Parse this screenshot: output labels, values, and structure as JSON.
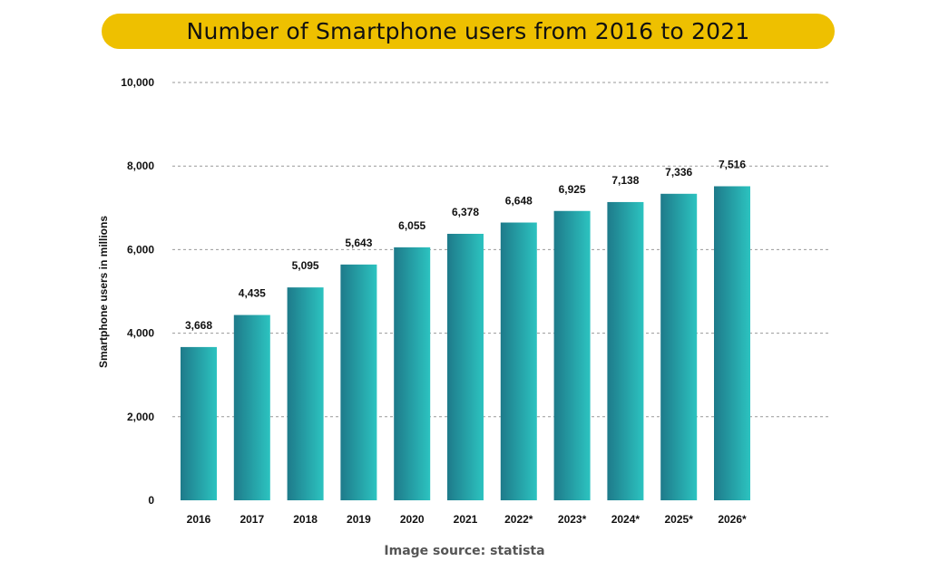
{
  "title": "Number of Smartphone users from 2016 to 2021",
  "source": "Image source: statista",
  "colors": {
    "banner": "#EEC000",
    "bar_dark": "#1E7A8A",
    "bar_light": "#2CC3C0",
    "gridline": "#999999",
    "text": "#111111"
  },
  "chart_data": {
    "type": "bar",
    "title": "Number of Smartphone users from 2016 to 2021",
    "xlabel": "",
    "ylabel": "Smartphone users in millions",
    "ylim": [
      0,
      10000
    ],
    "yticks": [
      0,
      2000,
      4000,
      6000,
      8000,
      10000
    ],
    "ytick_labels": [
      "0",
      "2,000",
      "4,000",
      "6,000",
      "8,000",
      "10,000"
    ],
    "grid": true,
    "categories": [
      "2016",
      "2017",
      "2018",
      "2019",
      "2020",
      "2021",
      "2022*",
      "2023*",
      "2024*",
      "2025*",
      "2026*"
    ],
    "values": [
      3668,
      4435,
      5095,
      5643,
      6055,
      6378,
      6648,
      6925,
      7138,
      7336,
      7516
    ],
    "data_labels": [
      "3,668",
      "4,435",
      "5,095",
      "5,643",
      "6,055",
      "6,378",
      "6,648",
      "6,925",
      "7,138",
      "7,336",
      "7,516"
    ]
  }
}
